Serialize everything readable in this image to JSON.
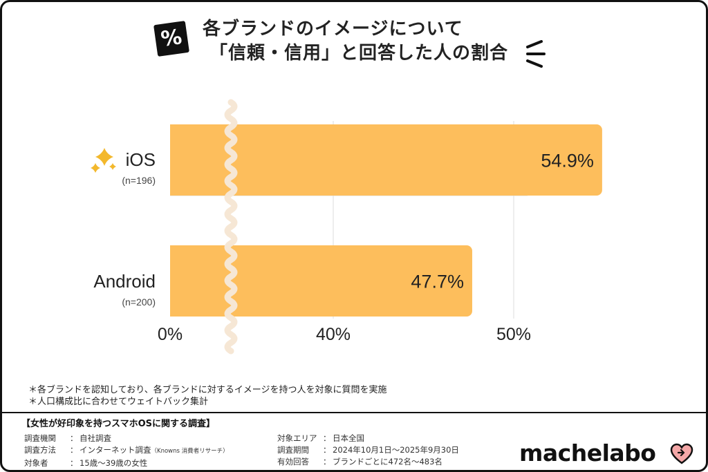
{
  "title": {
    "badge": "%",
    "line1": "各ブランドのイメージについて",
    "line2": "「信頼・信用」と回答した人の割合"
  },
  "colors": {
    "bar": "#FDBE5C",
    "grid": "#DDDDDD",
    "sparkle": "#F3B82C",
    "heart": "#F4A7A7",
    "wave": "#F6E7D5"
  },
  "chart_data": {
    "type": "bar",
    "orientation": "horizontal",
    "categories": [
      "iOS",
      "Android"
    ],
    "category_sublabels": [
      "(n=196)",
      "(n=200)"
    ],
    "values": [
      54.9,
      47.7
    ],
    "value_labels": [
      "54.9%",
      "47.7%"
    ],
    "xticks": [
      "0%",
      "40%",
      "50%"
    ],
    "xtick_values": [
      0,
      40,
      50
    ],
    "axis_break": true,
    "xlim": [
      0,
      57
    ],
    "grid": true
  },
  "notes": [
    "＊各ブランドを認知しており、各ブランドに対するイメージを持つ人を対象に質問を実施",
    "＊人口構成比に合わせてウェイトバック集計"
  ],
  "survey": {
    "title": "【女性が好印象を持つスマホOSに関する調査】",
    "left": [
      {
        "key": "調査機関",
        "value": "自社調査",
        "small": ""
      },
      {
        "key": "調査方法",
        "value": "インターネット調査",
        "small": "（Knowns 消費者リサーチ）"
      },
      {
        "key": "対象者",
        "value": "15歳～39歳の女性",
        "small": ""
      }
    ],
    "right": [
      {
        "key": "対象エリア",
        "value": "日本全国"
      },
      {
        "key": "調査期間",
        "value": "2024年10月1日～2025年9月30日"
      },
      {
        "key": "有効回答",
        "value": "ブランドごとに472名～483名"
      }
    ]
  },
  "logo": "machelabo"
}
